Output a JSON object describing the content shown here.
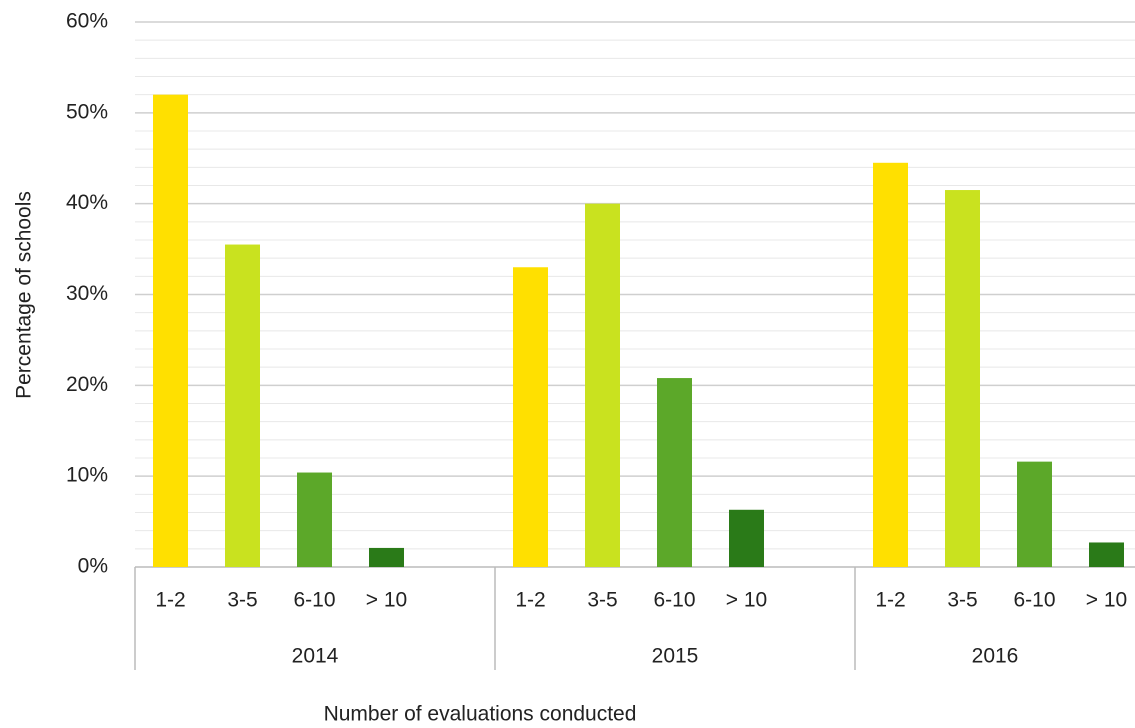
{
  "chart_data": {
    "type": "grouped_bar",
    "categories": [
      "2014",
      "2015",
      "2016"
    ],
    "series": [
      {
        "name": "1-2",
        "color": "#ffe000",
        "values": [
          52,
          33,
          44.5
        ]
      },
      {
        "name": "3-5",
        "color": "#c9e21f",
        "values": [
          35.5,
          40,
          41.5
        ]
      },
      {
        "name": "6-10",
        "color": "#5ca829",
        "values": [
          10.4,
          20.8,
          11.6
        ]
      },
      {
        "name": "> 10",
        "color": "#2a7a18",
        "values": [
          2.1,
          6.3,
          2.7
        ]
      }
    ],
    "ylim": [
      0,
      60
    ],
    "yticks": [
      {
        "value": 0,
        "label": "0%"
      },
      {
        "value": 10,
        "label": "10%"
      },
      {
        "value": 20,
        "label": "20%"
      },
      {
        "value": 30,
        "label": "30%"
      },
      {
        "value": 40,
        "label": "40%"
      },
      {
        "value": 50,
        "label": "50%"
      },
      {
        "value": 60,
        "label": "60%"
      }
    ],
    "minor_yticks": [
      2,
      4,
      6,
      8,
      12,
      14,
      16,
      18,
      22,
      24,
      26,
      28,
      32,
      34,
      36,
      38,
      42,
      44,
      46,
      48,
      52,
      54,
      56,
      58
    ],
    "ylabel": "Percentage of schools",
    "xlabel": "Number of evaluations conducted",
    "grid": true
  }
}
